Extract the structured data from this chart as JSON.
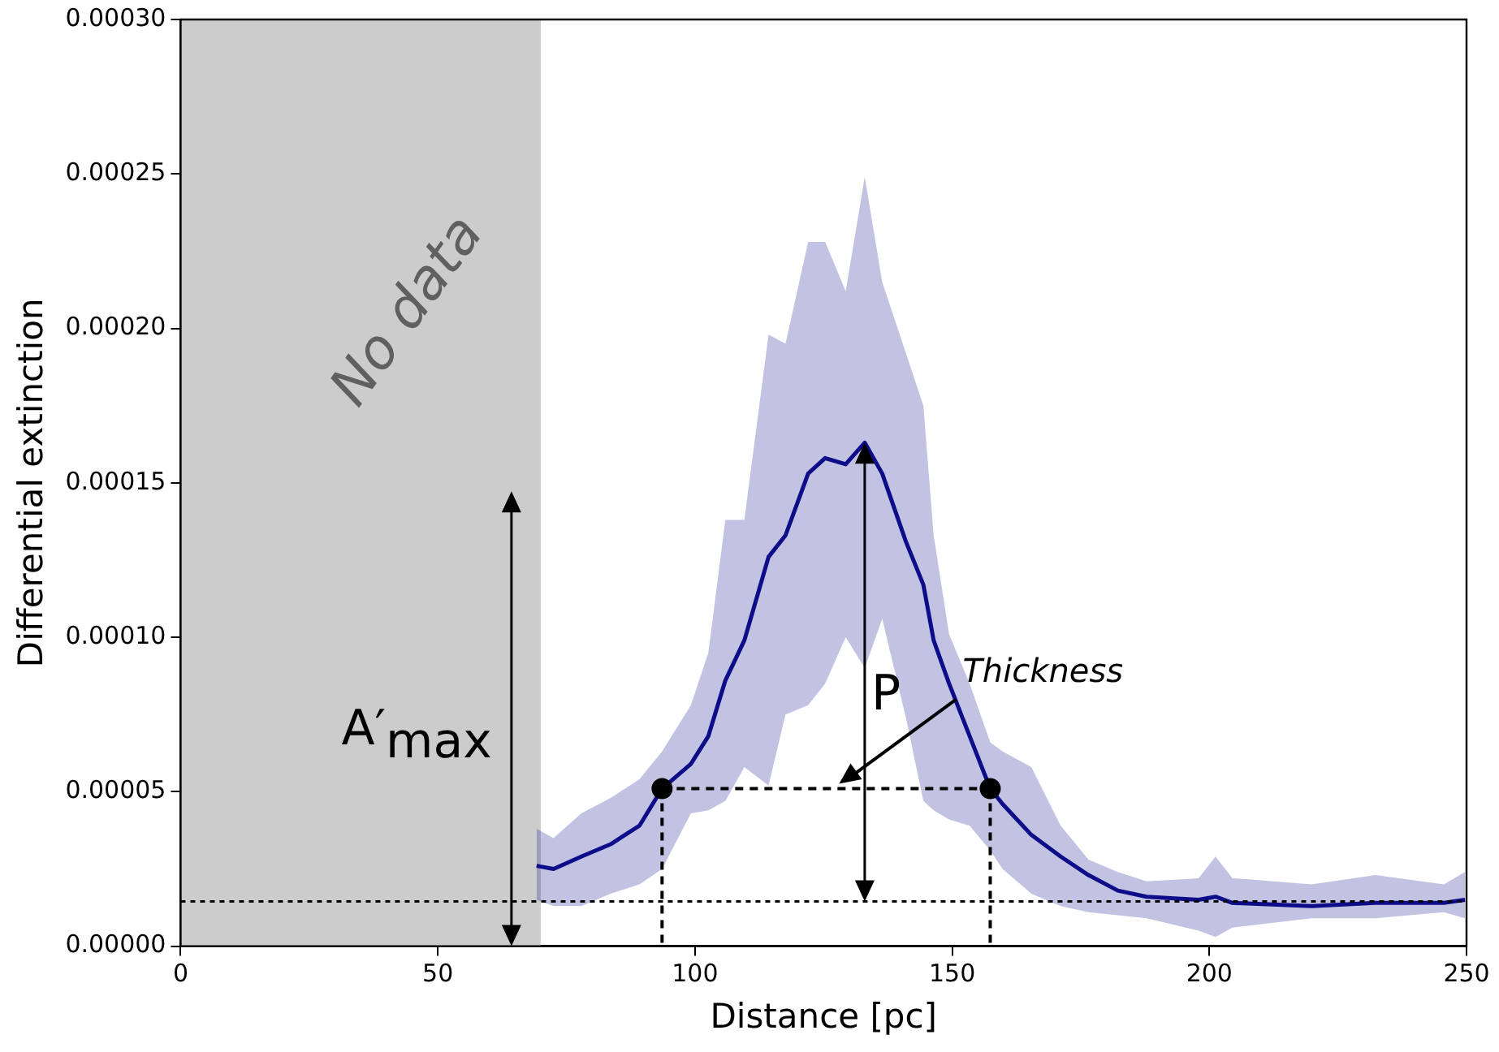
{
  "chart_data": {
    "type": "line",
    "xlabel": "Distance [pc]",
    "ylabel": "Differential extinction",
    "xlim": [
      0,
      250
    ],
    "xticks": [
      0,
      50,
      100,
      150,
      200,
      250
    ],
    "ylim": [
      0,
      0.0003
    ],
    "yticks": [
      {
        "value": 0,
        "label": "0.00000"
      },
      {
        "value": 5e-05,
        "label": "0.00005"
      },
      {
        "value": 0.0001,
        "label": "0.00010"
      },
      {
        "value": 0.00015,
        "label": "0.00015"
      },
      {
        "value": 0.0002,
        "label": "0.00020"
      },
      {
        "value": 0.00025,
        "label": "0.00025"
      },
      {
        "value": 0.0003,
        "label": "0.00030"
      }
    ],
    "grid": false,
    "legend": false,
    "series": [
      {
        "color": "#0d0d8a",
        "line_style": "solid",
        "marker": "none",
        "x": [
          69.2,
          72.5,
          77.9,
          83.6,
          89.2,
          93.6,
          99.2,
          102.6,
          105.9,
          109.6,
          114.3,
          117.6,
          122,
          125.3,
          129.3,
          133,
          136.4,
          141,
          144.4,
          146.4,
          149.4,
          153.4,
          157.4,
          159.8,
          165.4,
          171.1,
          176.5,
          182.2,
          187.8,
          197.9,
          201.2,
          204.5,
          219.9,
          232.3,
          245.6,
          249.7
        ],
        "values": [
          2.6e-05,
          2.5e-05,
          2.9e-05,
          3.3e-05,
          3.9e-05,
          5.1e-05,
          5.9e-05,
          6.8e-05,
          8.6e-05,
          9.9e-05,
          0.000126,
          0.000133,
          0.000153,
          0.000158,
          0.000156,
          0.000163,
          0.000153,
          0.000131,
          0.000117,
          9.9e-05,
          8.5e-05,
          6.8e-05,
          5.1e-05,
          4.6e-05,
          3.6e-05,
          2.9e-05,
          2.3e-05,
          1.8e-05,
          1.6e-05,
          1.5e-05,
          1.6e-05,
          1.4e-05,
          1.3e-05,
          1.4e-05,
          1.4e-05,
          1.5e-05
        ],
        "upper": [
          3.8e-05,
          3.5e-05,
          4.3e-05,
          4.8e-05,
          5.4e-05,
          6.3e-05,
          7.8e-05,
          9.5e-05,
          0.000138,
          0.000138,
          0.000198,
          0.000195,
          0.000228,
          0.000228,
          0.000212,
          0.000249,
          0.000215,
          0.000192,
          0.000175,
          0.000133,
          0.000101,
          8.5e-05,
          6.6e-05,
          6.3e-05,
          5.8e-05,
          3.9e-05,
          2.8e-05,
          2.4e-05,
          2.1e-05,
          2.2e-05,
          2.9e-05,
          2.2e-05,
          2e-05,
          2.3e-05,
          2e-05,
          2.4e-05
        ],
        "lower": [
          1.5e-05,
          1.3e-05,
          1.3e-05,
          1.7e-05,
          2e-05,
          2.5e-05,
          4.3e-05,
          4.4e-05,
          4.7e-05,
          5.8e-05,
          5.2e-05,
          7.5e-05,
          7.8e-05,
          8.5e-05,
          0.0001,
          9e-05,
          0.000106,
          7.4e-05,
          4.7e-05,
          4.4e-05,
          4.1e-05,
          3.9e-05,
          3.1e-05,
          2.5e-05,
          1.7e-05,
          1.3e-05,
          1.1e-05,
          1e-05,
          9e-06,
          5e-06,
          3e-06,
          6e-06,
          9e-06,
          9e-06,
          1.1e-05,
          9e-06
        ]
      },
      {
        "type": "scatter",
        "color": "#000000",
        "marker": "circle",
        "x": [
          93.6,
          157.4
        ],
        "values": [
          5.1e-05,
          5.1e-05
        ]
      }
    ],
    "bands": [
      {
        "axis": "x",
        "from": 0,
        "to": 70,
        "label": "No data",
        "color": "#cccccc"
      }
    ],
    "ref_lines": [
      {
        "axis": "y",
        "value": 1.45e-05,
        "color": "#000000",
        "line_style": "dotted"
      }
    ],
    "annotations": [
      "A′$_{max}$",
      "P",
      "Thickness"
    ]
  }
}
